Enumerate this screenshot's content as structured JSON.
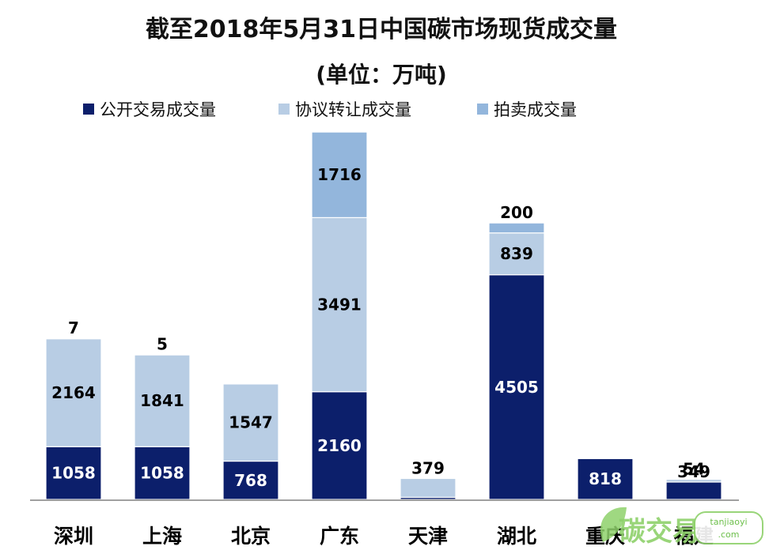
{
  "chart_data": {
    "type": "bar",
    "stacked": true,
    "title": "截至2018年5月31日中国碳市场现货成交量",
    "subtitle": "(单位：万吨)",
    "categories": [
      "深圳",
      "上海",
      "北京",
      "广东",
      "天津",
      "湖北",
      "重庆",
      "福建"
    ],
    "series": [
      {
        "name": "公开交易成交量",
        "color": "#0c1f6b",
        "values": [
          1058,
          1058,
          768,
          2160,
          41,
          4505,
          818,
          349
        ]
      },
      {
        "name": "协议转让成交量",
        "color": "#b8cde4",
        "values": [
          2164,
          1841,
          1547,
          3491,
          379,
          839,
          null,
          54
        ]
      },
      {
        "name": "拍卖成交量",
        "color": "#93b6dc",
        "values": [
          7,
          5,
          null,
          1716,
          null,
          200,
          null,
          null
        ]
      }
    ],
    "legend_position": "top",
    "grid": false,
    "ylim": [
      0,
      7400
    ]
  },
  "watermark": {
    "text": "碳交易",
    "domain": "tanjiaoyi",
    "domain_suffix": ".com"
  }
}
